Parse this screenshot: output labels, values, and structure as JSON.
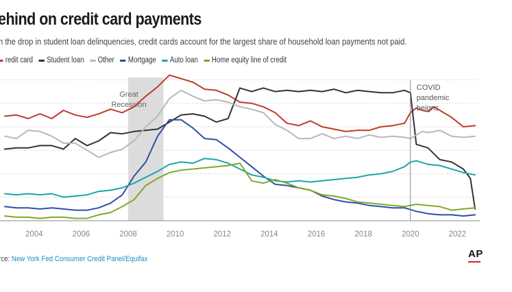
{
  "header": {
    "title": "ehind on credit card payments",
    "subtitle": "h the drop in student loan delinquencies, credit cards account for the largest share of household loan payments not paid."
  },
  "source": {
    "prefix": "rce: ",
    "link": "New York Fed Consumer Credit Panel/Equifax"
  },
  "logo": {
    "text": "AP"
  },
  "colors": {
    "accent": "#d6222a",
    "link": "#1a8fc0"
  },
  "chart_data": {
    "type": "line",
    "title": "ehind on credit card payments",
    "xlim": [
      2002.55,
      2022.95
    ],
    "ylim": [
      0,
      6.1
    ],
    "x_ticks": [
      "2004",
      "2006",
      "2008",
      "2010",
      "2012",
      "2014",
      "2016",
      "2018",
      "2020",
      "2022"
    ],
    "y_grid": [
      1,
      2,
      3,
      4,
      5,
      6
    ],
    "grid": true,
    "legend_position": "top-left",
    "shaded_region": {
      "x0": 2008.0,
      "x1": 2009.5,
      "label": [
        "Great",
        "Recession"
      ]
    },
    "annotation": {
      "x": 2020.0,
      "label": [
        "COVID",
        "pandemic",
        "beigns"
      ]
    },
    "series": [
      {
        "name": "redit card",
        "color": "#c0392b",
        "points": [
          [
            2002.75,
            4.45
          ],
          [
            2003.25,
            4.5
          ],
          [
            2003.75,
            4.35
          ],
          [
            2004.25,
            4.55
          ],
          [
            2004.75,
            4.35
          ],
          [
            2005.25,
            4.7
          ],
          [
            2005.75,
            4.5
          ],
          [
            2006.25,
            4.4
          ],
          [
            2006.75,
            4.55
          ],
          [
            2007.25,
            4.75
          ],
          [
            2007.75,
            4.6
          ],
          [
            2008.25,
            4.85
          ],
          [
            2008.75,
            5.3
          ],
          [
            2009.25,
            5.7
          ],
          [
            2009.75,
            6.2
          ],
          [
            2010.25,
            6.05
          ],
          [
            2010.75,
            5.9
          ],
          [
            2011.25,
            5.6
          ],
          [
            2011.75,
            5.55
          ],
          [
            2012.25,
            5.35
          ],
          [
            2012.75,
            5.05
          ],
          [
            2013.25,
            5.0
          ],
          [
            2013.75,
            4.85
          ],
          [
            2014.25,
            4.6
          ],
          [
            2014.75,
            4.15
          ],
          [
            2015.25,
            4.05
          ],
          [
            2015.75,
            4.25
          ],
          [
            2016.25,
            4.0
          ],
          [
            2016.75,
            3.9
          ],
          [
            2017.25,
            3.8
          ],
          [
            2017.75,
            3.85
          ],
          [
            2018.25,
            3.85
          ],
          [
            2018.75,
            4.0
          ],
          [
            2019.25,
            4.05
          ],
          [
            2019.75,
            4.15
          ],
          [
            2020.0,
            4.6
          ],
          [
            2020.25,
            4.8
          ],
          [
            2020.5,
            4.7
          ],
          [
            2020.75,
            4.65
          ],
          [
            2021.0,
            4.85
          ],
          [
            2021.25,
            4.7
          ],
          [
            2021.75,
            4.4
          ],
          [
            2022.25,
            4.0
          ],
          [
            2022.75,
            4.05
          ]
        ]
      },
      {
        "name": "Student loan",
        "color": "#333333",
        "points": [
          [
            2002.75,
            3.05
          ],
          [
            2003.25,
            3.1
          ],
          [
            2003.75,
            3.1
          ],
          [
            2004.25,
            3.2
          ],
          [
            2004.75,
            3.2
          ],
          [
            2005.25,
            3.05
          ],
          [
            2005.75,
            3.5
          ],
          [
            2006.25,
            3.2
          ],
          [
            2006.75,
            3.4
          ],
          [
            2007.25,
            3.75
          ],
          [
            2007.75,
            3.7
          ],
          [
            2008.25,
            3.8
          ],
          [
            2008.75,
            3.85
          ],
          [
            2009.25,
            3.9
          ],
          [
            2009.75,
            4.2
          ],
          [
            2010.25,
            4.5
          ],
          [
            2010.75,
            4.55
          ],
          [
            2011.25,
            4.45
          ],
          [
            2011.75,
            4.2
          ],
          [
            2012.25,
            4.35
          ],
          [
            2012.75,
            5.65
          ],
          [
            2013.25,
            5.5
          ],
          [
            2013.75,
            5.65
          ],
          [
            2014.25,
            5.5
          ],
          [
            2014.75,
            5.55
          ],
          [
            2015.25,
            5.5
          ],
          [
            2015.75,
            5.55
          ],
          [
            2016.25,
            5.5
          ],
          [
            2016.75,
            5.6
          ],
          [
            2017.25,
            5.45
          ],
          [
            2017.75,
            5.55
          ],
          [
            2018.25,
            5.5
          ],
          [
            2018.75,
            5.45
          ],
          [
            2019.25,
            5.45
          ],
          [
            2019.75,
            5.55
          ],
          [
            2020.0,
            5.45
          ],
          [
            2020.25,
            3.25
          ],
          [
            2020.75,
            3.1
          ],
          [
            2021.25,
            2.6
          ],
          [
            2021.75,
            2.5
          ],
          [
            2022.25,
            2.2
          ],
          [
            2022.55,
            1.8
          ],
          [
            2022.75,
            0.5
          ]
        ]
      },
      {
        "name": "Other",
        "color": "#b8b8b8",
        "points": [
          [
            2002.75,
            3.6
          ],
          [
            2003.25,
            3.5
          ],
          [
            2003.75,
            3.85
          ],
          [
            2004.25,
            3.8
          ],
          [
            2004.75,
            3.6
          ],
          [
            2005.25,
            3.3
          ],
          [
            2005.75,
            3.3
          ],
          [
            2006.25,
            3.0
          ],
          [
            2006.75,
            2.7
          ],
          [
            2007.25,
            2.9
          ],
          [
            2007.75,
            3.05
          ],
          [
            2008.25,
            3.4
          ],
          [
            2008.75,
            4.0
          ],
          [
            2009.25,
            4.45
          ],
          [
            2009.75,
            5.2
          ],
          [
            2010.25,
            5.55
          ],
          [
            2010.75,
            5.3
          ],
          [
            2011.25,
            5.1
          ],
          [
            2011.75,
            5.15
          ],
          [
            2012.25,
            5.05
          ],
          [
            2012.75,
            4.85
          ],
          [
            2013.25,
            4.75
          ],
          [
            2013.75,
            4.6
          ],
          [
            2014.25,
            4.1
          ],
          [
            2014.75,
            3.85
          ],
          [
            2015.25,
            3.5
          ],
          [
            2015.75,
            3.5
          ],
          [
            2016.25,
            3.7
          ],
          [
            2016.75,
            3.5
          ],
          [
            2017.25,
            3.6
          ],
          [
            2017.75,
            3.5
          ],
          [
            2018.25,
            3.65
          ],
          [
            2018.75,
            3.55
          ],
          [
            2019.25,
            3.6
          ],
          [
            2019.75,
            3.55
          ],
          [
            2020.0,
            3.5
          ],
          [
            2020.5,
            3.8
          ],
          [
            2020.75,
            3.75
          ],
          [
            2021.25,
            3.85
          ],
          [
            2021.75,
            3.6
          ],
          [
            2022.25,
            3.55
          ],
          [
            2022.75,
            3.6
          ]
        ]
      },
      {
        "name": "Mortgage",
        "color": "#2d4fa3",
        "points": [
          [
            2002.75,
            0.6
          ],
          [
            2003.25,
            0.55
          ],
          [
            2003.75,
            0.55
          ],
          [
            2004.25,
            0.5
          ],
          [
            2004.75,
            0.55
          ],
          [
            2005.25,
            0.5
          ],
          [
            2005.75,
            0.45
          ],
          [
            2006.25,
            0.45
          ],
          [
            2006.75,
            0.55
          ],
          [
            2007.25,
            0.75
          ],
          [
            2007.75,
            1.1
          ],
          [
            2008.25,
            1.9
          ],
          [
            2008.75,
            2.5
          ],
          [
            2009.25,
            3.6
          ],
          [
            2009.75,
            4.3
          ],
          [
            2010.25,
            4.3
          ],
          [
            2010.75,
            3.95
          ],
          [
            2011.25,
            3.5
          ],
          [
            2011.75,
            3.45
          ],
          [
            2012.25,
            3.1
          ],
          [
            2012.75,
            2.7
          ],
          [
            2013.25,
            2.3
          ],
          [
            2013.75,
            1.9
          ],
          [
            2014.25,
            1.55
          ],
          [
            2014.75,
            1.5
          ],
          [
            2015.25,
            1.4
          ],
          [
            2015.75,
            1.3
          ],
          [
            2016.25,
            1.05
          ],
          [
            2016.75,
            0.9
          ],
          [
            2017.25,
            0.8
          ],
          [
            2017.75,
            0.75
          ],
          [
            2018.25,
            0.65
          ],
          [
            2018.75,
            0.6
          ],
          [
            2019.25,
            0.55
          ],
          [
            2019.75,
            0.55
          ],
          [
            2020.25,
            0.4
          ],
          [
            2020.75,
            0.3
          ],
          [
            2021.25,
            0.25
          ],
          [
            2021.75,
            0.25
          ],
          [
            2022.25,
            0.2
          ],
          [
            2022.75,
            0.25
          ]
        ]
      },
      {
        "name": "Auto loan",
        "color": "#1aa7a7",
        "points": [
          [
            2002.75,
            1.15
          ],
          [
            2003.25,
            1.1
          ],
          [
            2003.75,
            1.15
          ],
          [
            2004.25,
            1.1
          ],
          [
            2004.75,
            1.15
          ],
          [
            2005.25,
            1.0
          ],
          [
            2005.75,
            1.05
          ],
          [
            2006.25,
            1.1
          ],
          [
            2006.75,
            1.25
          ],
          [
            2007.25,
            1.3
          ],
          [
            2007.75,
            1.4
          ],
          [
            2008.25,
            1.6
          ],
          [
            2008.75,
            1.85
          ],
          [
            2009.25,
            2.1
          ],
          [
            2009.75,
            2.4
          ],
          [
            2010.25,
            2.5
          ],
          [
            2010.75,
            2.45
          ],
          [
            2011.25,
            2.65
          ],
          [
            2011.75,
            2.6
          ],
          [
            2012.25,
            2.45
          ],
          [
            2012.75,
            2.2
          ],
          [
            2013.25,
            1.95
          ],
          [
            2013.75,
            1.85
          ],
          [
            2014.25,
            1.7
          ],
          [
            2014.75,
            1.65
          ],
          [
            2015.25,
            1.7
          ],
          [
            2015.75,
            1.65
          ],
          [
            2016.25,
            1.7
          ],
          [
            2016.75,
            1.75
          ],
          [
            2017.25,
            1.8
          ],
          [
            2017.75,
            1.85
          ],
          [
            2018.25,
            1.95
          ],
          [
            2018.75,
            2.0
          ],
          [
            2019.25,
            2.1
          ],
          [
            2019.75,
            2.3
          ],
          [
            2020.0,
            2.5
          ],
          [
            2020.25,
            2.55
          ],
          [
            2020.75,
            2.4
          ],
          [
            2021.25,
            2.35
          ],
          [
            2021.75,
            2.2
          ],
          [
            2022.25,
            2.05
          ],
          [
            2022.75,
            1.95
          ]
        ]
      },
      {
        "name": "Home equity line of credit",
        "color": "#7fa82a",
        "points": [
          [
            2002.75,
            0.2
          ],
          [
            2003.25,
            0.15
          ],
          [
            2003.75,
            0.15
          ],
          [
            2004.25,
            0.1
          ],
          [
            2004.75,
            0.15
          ],
          [
            2005.25,
            0.15
          ],
          [
            2005.75,
            0.1
          ],
          [
            2006.25,
            0.1
          ],
          [
            2006.75,
            0.25
          ],
          [
            2007.25,
            0.35
          ],
          [
            2007.75,
            0.6
          ],
          [
            2008.25,
            0.9
          ],
          [
            2008.75,
            1.5
          ],
          [
            2009.25,
            1.8
          ],
          [
            2009.75,
            2.05
          ],
          [
            2010.25,
            2.15
          ],
          [
            2010.75,
            2.2
          ],
          [
            2011.25,
            2.25
          ],
          [
            2011.75,
            2.3
          ],
          [
            2012.25,
            2.35
          ],
          [
            2012.75,
            2.45
          ],
          [
            2013.25,
            1.7
          ],
          [
            2013.75,
            1.6
          ],
          [
            2014.25,
            1.75
          ],
          [
            2014.75,
            1.6
          ],
          [
            2015.25,
            1.4
          ],
          [
            2015.75,
            1.3
          ],
          [
            2016.25,
            1.1
          ],
          [
            2016.75,
            1.05
          ],
          [
            2017.25,
            0.95
          ],
          [
            2017.75,
            0.8
          ],
          [
            2018.25,
            0.75
          ],
          [
            2018.75,
            0.7
          ],
          [
            2019.25,
            0.65
          ],
          [
            2019.75,
            0.6
          ],
          [
            2020.25,
            0.7
          ],
          [
            2020.75,
            0.65
          ],
          [
            2021.25,
            0.6
          ],
          [
            2021.75,
            0.45
          ],
          [
            2022.25,
            0.5
          ],
          [
            2022.75,
            0.55
          ]
        ]
      }
    ]
  }
}
